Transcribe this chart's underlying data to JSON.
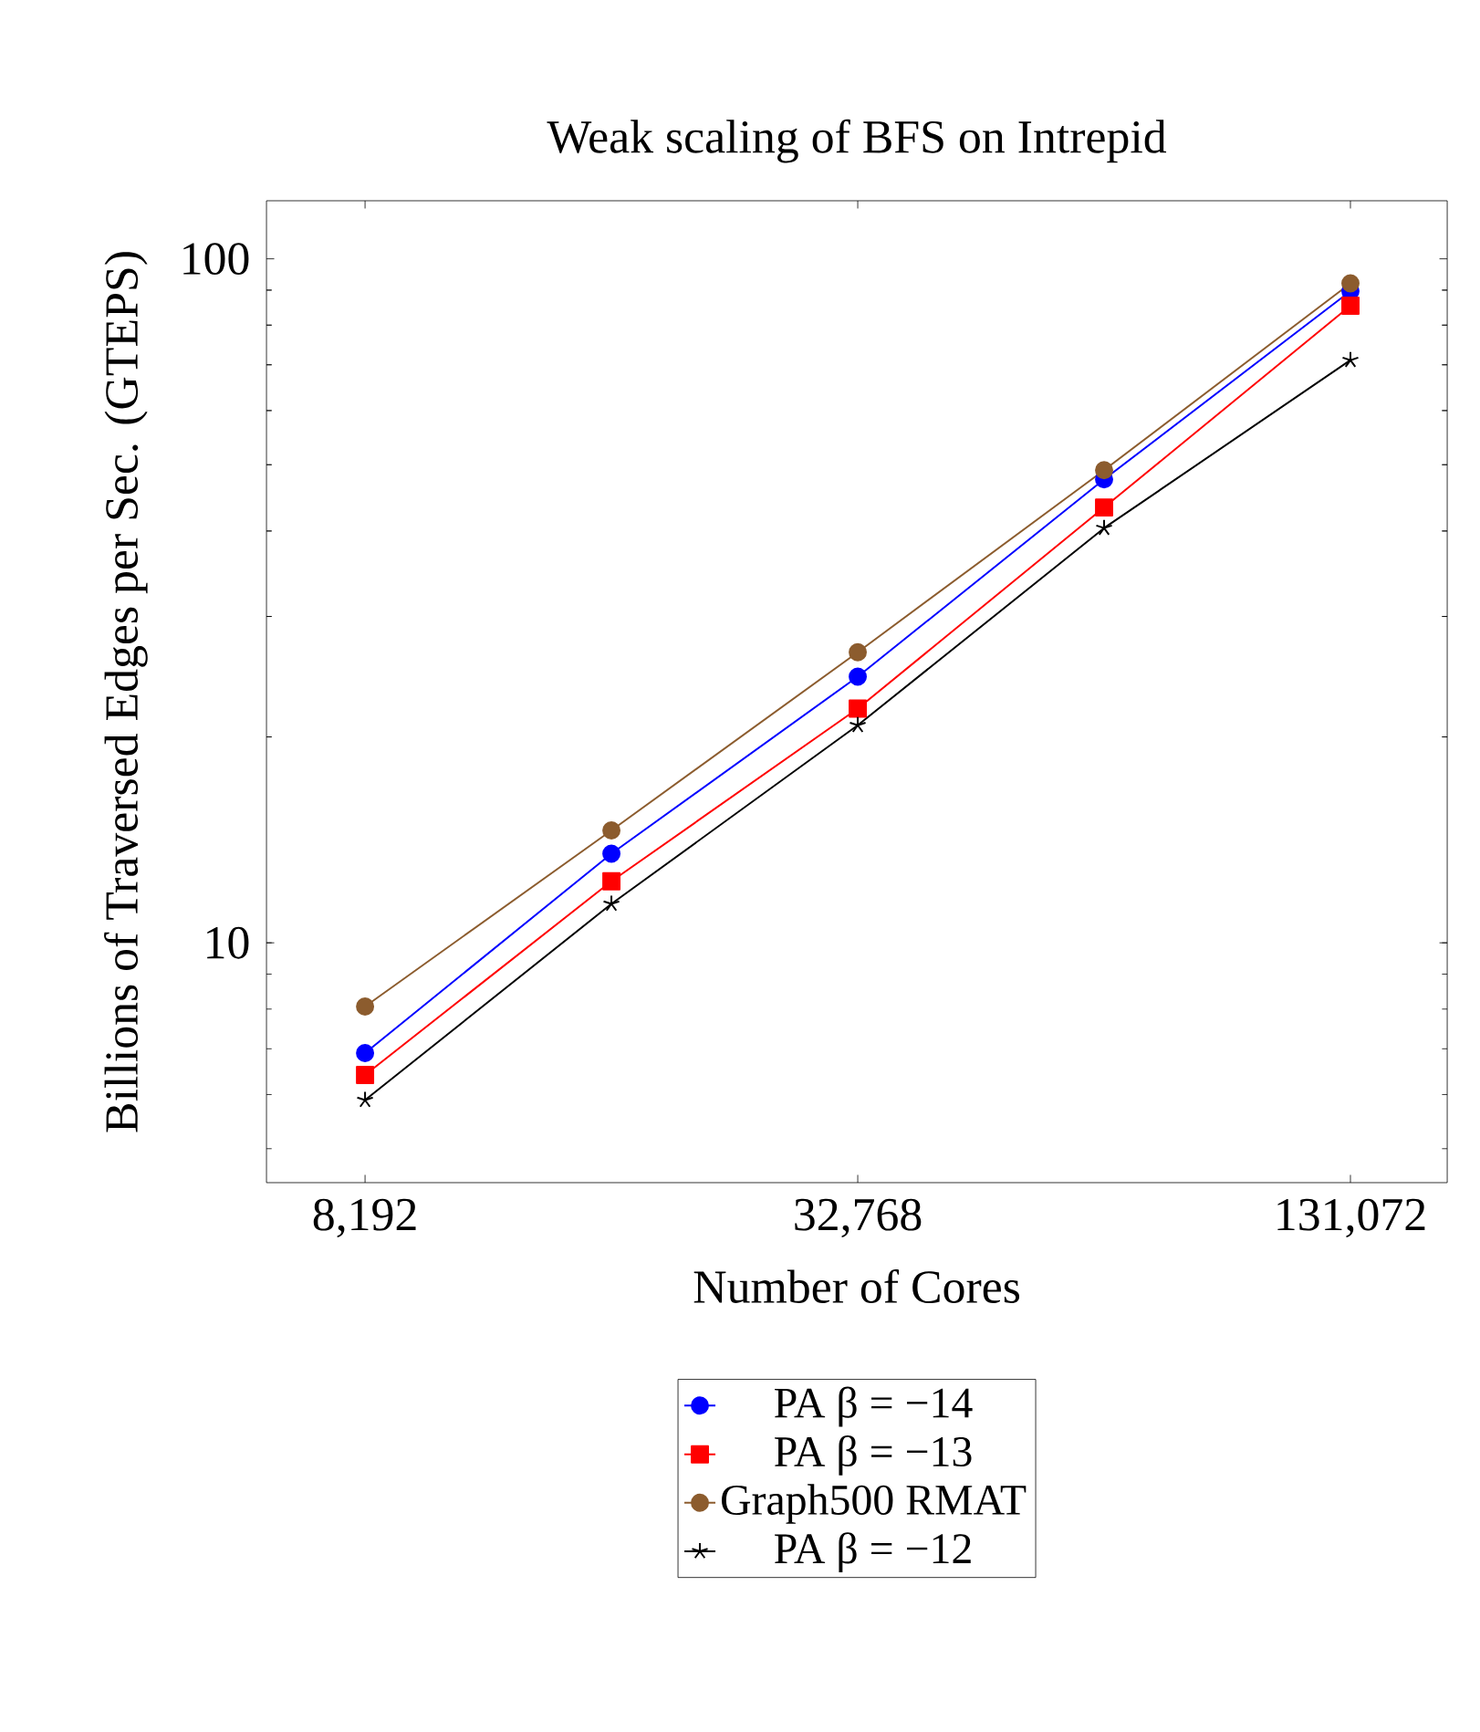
{
  "chart_data": {
    "type": "line",
    "title": "Weak scaling of BFS on Intrepid",
    "xlabel": "Number of Cores",
    "ylabel": "Billions of Traversed Edges per Sec. (GTEPS)",
    "x": [
      8192,
      16384,
      32768,
      65536,
      131072
    ],
    "series": [
      {
        "name": "PA β = −14",
        "color": "#0000ff",
        "marker": "circle",
        "values": [
          6.9,
          13.5,
          24.5,
          47.6,
          89.7
        ]
      },
      {
        "name": "PA β = −13",
        "color": "#ff0000",
        "marker": "square",
        "values": [
          6.41,
          12.3,
          22.0,
          43.3,
          85.4
        ]
      },
      {
        "name": "Graph500 RMAT",
        "color": "#8c5c2e",
        "marker": "circle",
        "values": [
          8.07,
          14.6,
          26.6,
          49.1,
          92.1
        ]
      },
      {
        "name": "PA β = −12",
        "color": "#000000",
        "marker": "cross",
        "values": [
          5.89,
          11.4,
          20.8,
          40.4,
          71.1
        ]
      }
    ],
    "log": "xy",
    "xlim": [
      6208,
      172100
    ],
    "ylim": [
      4.46,
      121.6
    ],
    "xticks": [
      {
        "value": 8192,
        "label": "8,192"
      },
      {
        "value": 32768,
        "label": "32,768"
      },
      {
        "value": 131072,
        "label": "131,072"
      }
    ],
    "yticks": [
      {
        "value": 5,
        "label": null
      },
      {
        "value": 6,
        "label": null
      },
      {
        "value": 7,
        "label": null
      },
      {
        "value": 8,
        "label": null
      },
      {
        "value": 9,
        "label": null
      },
      10,
      {
        "value": 20,
        "label": null
      },
      {
        "value": 30,
        "label": null
      },
      {
        "value": 40,
        "label": null
      },
      {
        "value": 50,
        "label": null
      },
      {
        "value": 60,
        "label": null
      },
      {
        "value": 70,
        "label": null
      },
      {
        "value": 80,
        "label": null
      },
      {
        "value": 90,
        "label": null
      },
      100
    ],
    "grid": false,
    "legend": "bottom",
    "line_style": "solid"
  }
}
